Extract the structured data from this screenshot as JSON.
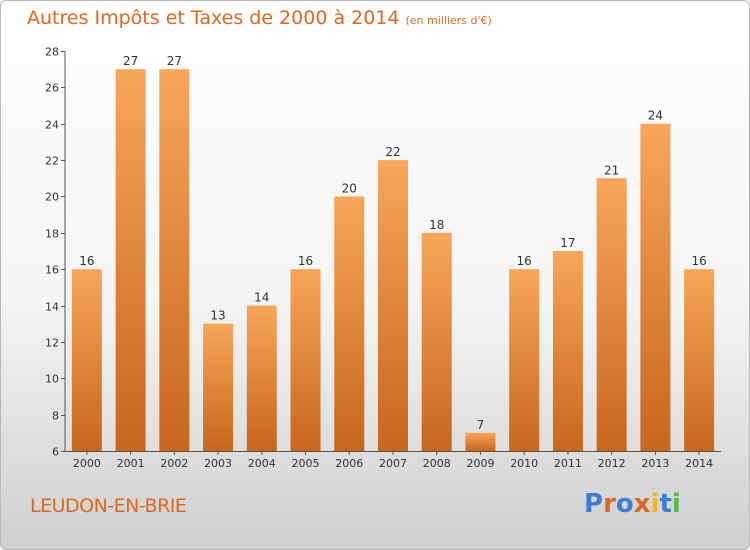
{
  "title": "Autres Impôts et Taxes de 2000 à 2014",
  "title_unit": "(en milliers d'€)",
  "commune": "LEUDON-EN-BRIE",
  "logo_text": "Proxiti",
  "logo_colors": [
    "#3a7fd5",
    "#e0671f",
    "#3a7fd5",
    "#e0671f",
    "#f2b51a",
    "#3a7fd5",
    "#5ab946"
  ],
  "colors": {
    "accent": "#e0671f",
    "bar_light": "#f7a65a",
    "bar_dark": "#c8661c"
  },
  "chart_data": {
    "type": "bar",
    "categories": [
      "2000",
      "2001",
      "2002",
      "2003",
      "2004",
      "2005",
      "2006",
      "2007",
      "2008",
      "2009",
      "2010",
      "2011",
      "2012",
      "2013",
      "2014"
    ],
    "values": [
      16,
      27,
      27,
      13,
      14,
      16,
      20,
      22,
      18,
      7,
      16,
      17,
      21,
      24,
      16
    ],
    "ylim": [
      6,
      28
    ],
    "yticks": [
      6,
      8,
      10,
      12,
      14,
      16,
      18,
      20,
      22,
      24,
      26,
      28
    ],
    "grid": false,
    "data_labels": true
  }
}
